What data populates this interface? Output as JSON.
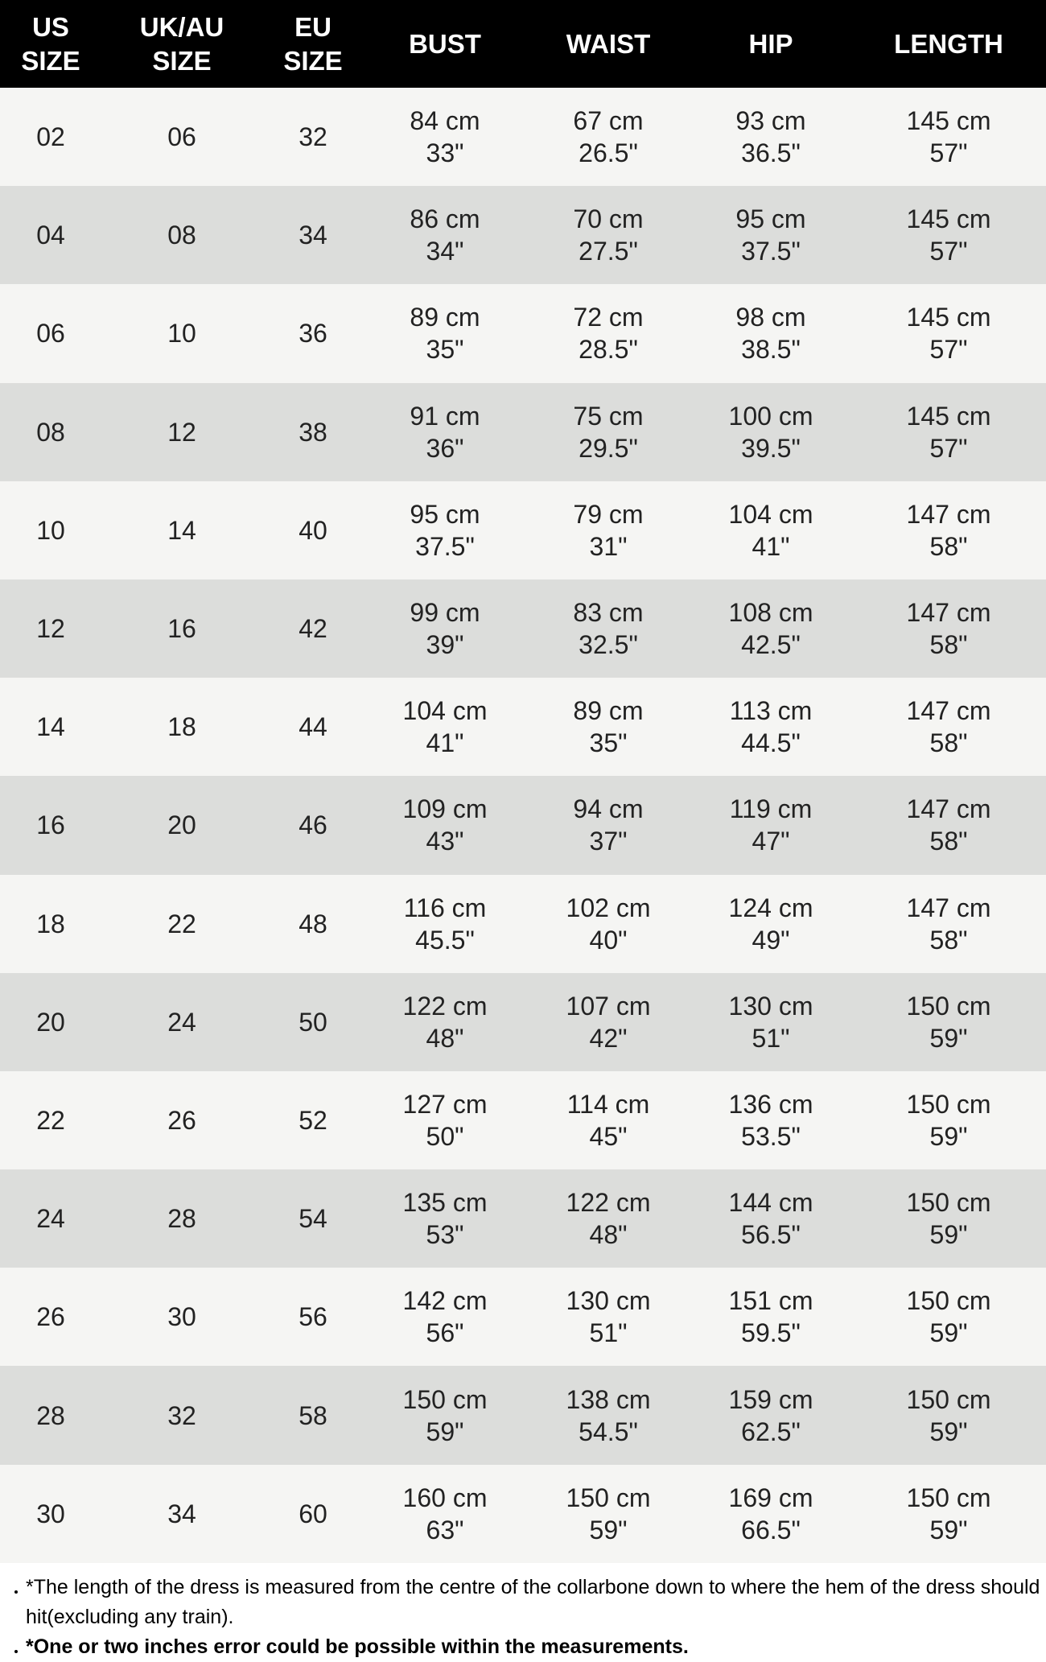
{
  "table": {
    "header": [
      [
        "US",
        "SIZE"
      ],
      [
        "UK/AU",
        "SIZE"
      ],
      [
        "EU",
        "SIZE"
      ],
      [
        "BUST"
      ],
      [
        "WAIST"
      ],
      [
        "HIP"
      ],
      [
        "LENGTH"
      ]
    ],
    "rows": [
      [
        "02",
        "06",
        "32",
        [
          "84 cm",
          "33\""
        ],
        [
          "67 cm",
          "26.5\""
        ],
        [
          "93 cm",
          "36.5\""
        ],
        [
          "145 cm",
          "57\""
        ]
      ],
      [
        "04",
        "08",
        "34",
        [
          "86 cm",
          "34\""
        ],
        [
          "70 cm",
          "27.5\""
        ],
        [
          "95 cm",
          "37.5\""
        ],
        [
          "145 cm",
          "57\""
        ]
      ],
      [
        "06",
        "10",
        "36",
        [
          "89 cm",
          "35\""
        ],
        [
          "72 cm",
          "28.5\""
        ],
        [
          "98 cm",
          "38.5\""
        ],
        [
          "145 cm",
          "57\""
        ]
      ],
      [
        "08",
        "12",
        "38",
        [
          "91 cm",
          "36\""
        ],
        [
          "75 cm",
          "29.5\""
        ],
        [
          "100 cm",
          "39.5\""
        ],
        [
          "145 cm",
          "57\""
        ]
      ],
      [
        "10",
        "14",
        "40",
        [
          "95 cm",
          "37.5\""
        ],
        [
          "79 cm",
          "31\""
        ],
        [
          "104 cm",
          "41\""
        ],
        [
          "147 cm",
          "58\""
        ]
      ],
      [
        "12",
        "16",
        "42",
        [
          "99 cm",
          "39\""
        ],
        [
          "83 cm",
          "32.5\""
        ],
        [
          "108 cm",
          "42.5\""
        ],
        [
          "147 cm",
          "58\""
        ]
      ],
      [
        "14",
        "18",
        "44",
        [
          "104 cm",
          "41\""
        ],
        [
          "89 cm",
          "35\""
        ],
        [
          "113 cm",
          "44.5\""
        ],
        [
          "147 cm",
          "58\""
        ]
      ],
      [
        "16",
        "20",
        "46",
        [
          "109 cm",
          "43\""
        ],
        [
          "94 cm",
          "37\""
        ],
        [
          "119 cm",
          "47\""
        ],
        [
          "147 cm",
          "58\""
        ]
      ],
      [
        "18",
        "22",
        "48",
        [
          "116 cm",
          "45.5\""
        ],
        [
          "102 cm",
          "40\""
        ],
        [
          "124 cm",
          "49\""
        ],
        [
          "147 cm",
          "58\""
        ]
      ],
      [
        "20",
        "24",
        "50",
        [
          "122 cm",
          "48\""
        ],
        [
          "107 cm",
          "42\""
        ],
        [
          "130 cm",
          "51\""
        ],
        [
          "150 cm",
          "59\""
        ]
      ],
      [
        "22",
        "26",
        "52",
        [
          "127 cm",
          "50\""
        ],
        [
          "114 cm",
          "45\""
        ],
        [
          "136 cm",
          "53.5\""
        ],
        [
          "150 cm",
          "59\""
        ]
      ],
      [
        "24",
        "28",
        "54",
        [
          "135 cm",
          "53\""
        ],
        [
          "122 cm",
          "48\""
        ],
        [
          "144 cm",
          "56.5\""
        ],
        [
          "150 cm",
          "59\""
        ]
      ],
      [
        "26",
        "30",
        "56",
        [
          "142 cm",
          "56\""
        ],
        [
          "130 cm",
          "51\""
        ],
        [
          "151 cm",
          "59.5\""
        ],
        [
          "150 cm",
          "59\""
        ]
      ],
      [
        "28",
        "32",
        "58",
        [
          "150 cm",
          "59\""
        ],
        [
          "138 cm",
          "54.5\""
        ],
        [
          "159 cm",
          "62.5\""
        ],
        [
          "150 cm",
          "59\""
        ]
      ],
      [
        "30",
        "34",
        "60",
        [
          "160 cm",
          "63\""
        ],
        [
          "150 cm",
          "59\""
        ],
        [
          "169 cm",
          "66.5\""
        ],
        [
          "150 cm",
          "59\""
        ]
      ]
    ]
  },
  "notes": [
    "*The length of the dress is measured from the centre of the collarbone down to where the hem of the dress should hit(excluding any train).",
    "*One or two inches error could be possible within the measurements."
  ]
}
